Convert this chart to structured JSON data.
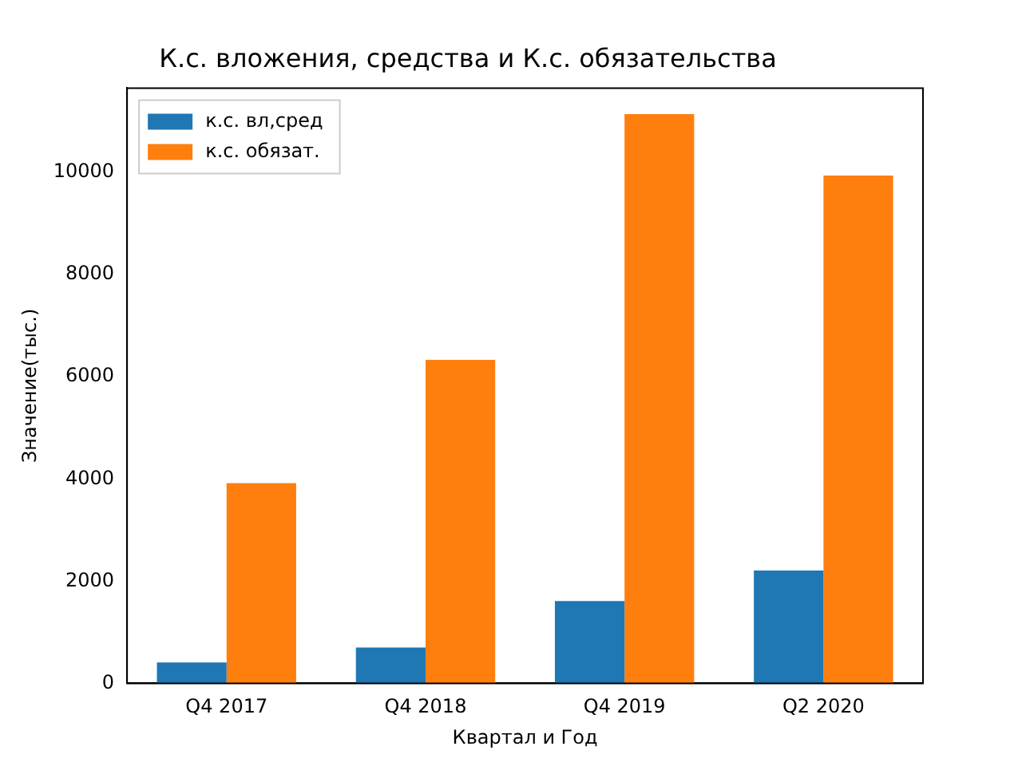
{
  "chart_data": {
    "type": "bar",
    "title": "К.с. вложения, средства и К.с. обязательства",
    "xlabel": "Квартал и Год",
    "ylabel": "Значение(тыс.)",
    "categories": [
      "Q4 2017",
      "Q4 2018",
      "Q4 2019",
      "Q2 2020"
    ],
    "series": [
      {
        "name": "к.с. вл,сред",
        "color": "#1f77b4",
        "values": [
          410,
          700,
          1610,
          2210
        ]
      },
      {
        "name": "к.с. обязат.",
        "color": "#ff7f0e",
        "values": [
          3920,
          6330,
          11140,
          9940
        ]
      }
    ],
    "ylim": [
      0,
      11650
    ],
    "yticks": [
      0,
      2000,
      4000,
      6000,
      8000,
      10000
    ],
    "grid": false,
    "legend": "top left"
  }
}
